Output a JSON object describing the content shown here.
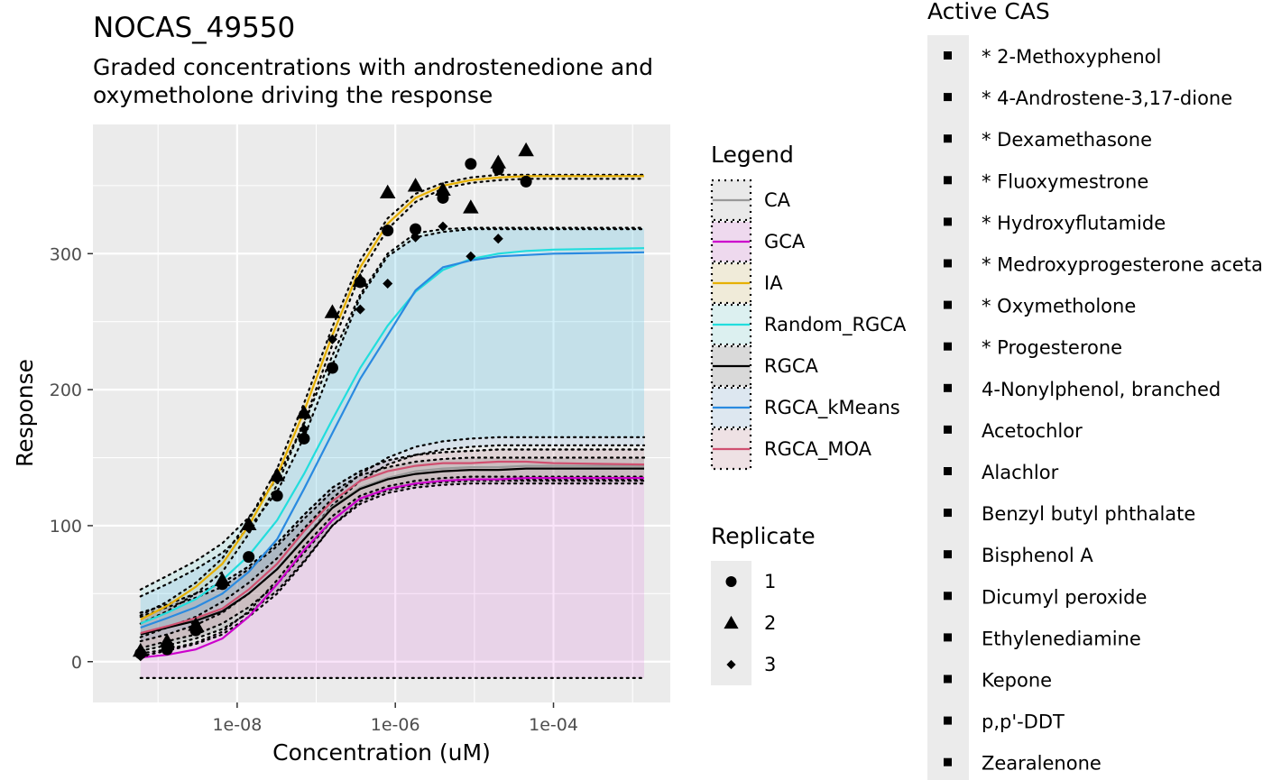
{
  "chart_data": {
    "type": "line",
    "title": "NOCAS_49550",
    "subtitle_lines": [
      "Graded concentrations with androstenedione and",
      "oxymetholone driving the response"
    ],
    "xlabel": "Concentration (uM)",
    "ylabel": "Response",
    "x_scale": "log10",
    "xlim": [
      1.5e-10,
      0.003
    ],
    "ylim": [
      -30,
      395
    ],
    "x_ticks": [
      {
        "value": 1e-08,
        "label": "1e-08"
      },
      {
        "value": 1e-06,
        "label": "1e-06"
      },
      {
        "value": 0.0001,
        "label": "1e-04"
      }
    ],
    "y_ticks": [
      {
        "value": 0,
        "label": "0"
      },
      {
        "value": 100,
        "label": "100"
      },
      {
        "value": 200,
        "label": "200"
      },
      {
        "value": 300,
        "label": "300"
      }
    ],
    "grid": true,
    "x": [
      6e-10,
      1.3e-09,
      3e-09,
      6.5e-09,
      1.4e-08,
      3.2e-08,
      7e-08,
      1.6e-07,
      3.6e-07,
      8e-07,
      1.8e-06,
      4e-06,
      9e-06,
      2e-05,
      4.5e-05,
      0.0001,
      0.0014
    ],
    "series": [
      {
        "name": "CA",
        "color": "#999999",
        "values": [
          20,
          25,
          31,
          37,
          50,
          68,
          90,
          114,
          128,
          135,
          140,
          142,
          143,
          143,
          144,
          144,
          144
        ],
        "lower": [
          4,
          8,
          13,
          20,
          33,
          50,
          73,
          100,
          118,
          126,
          130,
          132,
          133,
          133,
          133,
          133,
          133
        ],
        "upper": [
          36,
          42,
          50,
          58,
          70,
          87,
          108,
          128,
          140,
          148,
          152,
          154,
          155,
          156,
          156,
          156,
          156
        ]
      },
      {
        "name": "GCA",
        "color": "#cc00cc",
        "values": [
          3,
          5,
          9,
          17,
          33,
          57,
          82,
          104,
          120,
          127,
          131,
          133,
          134,
          134,
          135,
          135,
          135
        ],
        "lower": [
          -12,
          -12,
          -12,
          -12,
          -12,
          -12,
          -12,
          -12,
          -12,
          -12,
          -12,
          -12,
          -12,
          -12,
          -12,
          -12,
          -12
        ],
        "upper": [
          6,
          9,
          14,
          22,
          37,
          60,
          85,
          107,
          122,
          129,
          133,
          135,
          136,
          136,
          136,
          136,
          136
        ]
      },
      {
        "name": "IA",
        "color": "#e6b000",
        "values": [
          31,
          41,
          55,
          72,
          100,
          137,
          184,
          240,
          290,
          322,
          341,
          350,
          354,
          356,
          357,
          357,
          357
        ],
        "lower": [
          28,
          37,
          50,
          66,
          94,
          130,
          176,
          233,
          285,
          318,
          338,
          348,
          352,
          354,
          355,
          355,
          355
        ],
        "upper": [
          34,
          44,
          58,
          76,
          104,
          142,
          190,
          246,
          295,
          326,
          344,
          352,
          356,
          358,
          358,
          358,
          358
        ]
      },
      {
        "name": "Random_RGCA",
        "color": "#22dddd",
        "values": [
          28,
          36,
          46,
          60,
          78,
          104,
          138,
          178,
          216,
          247,
          272,
          288,
          296,
          300,
          302,
          303,
          304
        ],
        "lower": [
          18,
          25,
          33,
          44,
          58,
          76,
          98,
          120,
          138,
          150,
          158,
          162,
          164,
          165,
          165,
          165,
          165
        ],
        "upper": [
          53,
          63,
          74,
          87,
          106,
          135,
          175,
          225,
          270,
          300,
          315,
          318,
          319,
          319,
          319,
          319,
          319
        ]
      },
      {
        "name": "RGCA",
        "color": "#000000",
        "values": [
          20,
          25,
          30,
          37,
          50,
          68,
          90,
          113,
          127,
          134,
          138,
          140,
          141,
          141,
          142,
          142,
          142
        ],
        "lower": [
          8,
          12,
          17,
          24,
          36,
          52,
          74,
          100,
          116,
          124,
          128,
          130,
          131,
          131,
          131,
          131,
          131
        ],
        "upper": [
          33,
          40,
          47,
          55,
          68,
          85,
          105,
          125,
          137,
          143,
          147,
          149,
          150,
          150,
          150,
          150,
          150
        ]
      },
      {
        "name": "RGCA_kMeans",
        "color": "#2a8ae0",
        "values": [
          25,
          32,
          40,
          50,
          66,
          90,
          127,
          168,
          208,
          240,
          273,
          290,
          295,
          298,
          299,
          300,
          301
        ],
        "lower": [
          15,
          20,
          27,
          36,
          50,
          68,
          90,
          115,
          133,
          145,
          152,
          156,
          158,
          159,
          159,
          159,
          159
        ],
        "upper": [
          48,
          57,
          68,
          80,
          98,
          125,
          165,
          218,
          268,
          298,
          312,
          316,
          318,
          318,
          318,
          318,
          318
        ]
      },
      {
        "name": "RGCA_MOA",
        "color": "#d05070",
        "values": [
          21,
          26,
          32,
          39,
          53,
          72,
          96,
          118,
          133,
          140,
          144,
          146,
          146,
          147,
          147,
          146,
          145
        ],
        "lower": [
          10,
          15,
          20,
          28,
          40,
          57,
          80,
          104,
          120,
          127,
          131,
          133,
          134,
          134,
          134,
          134,
          134
        ],
        "upper": [
          36,
          42,
          50,
          58,
          70,
          87,
          108,
          128,
          140,
          148,
          152,
          154,
          155,
          156,
          156,
          156,
          156
        ]
      }
    ],
    "replicates": [
      {
        "name": "1",
        "shape": "circle",
        "points": [
          [
            6e-10,
            6
          ],
          [
            1.3e-09,
            9
          ],
          [
            3e-09,
            23
          ],
          [
            6.5e-09,
            57
          ],
          [
            1.4e-08,
            77
          ],
          [
            3.2e-08,
            122
          ],
          [
            7e-08,
            164
          ],
          [
            1.6e-07,
            216
          ],
          [
            3.6e-07,
            279
          ],
          [
            8e-07,
            317
          ],
          [
            1.8e-06,
            318
          ],
          [
            4e-06,
            341
          ],
          [
            9e-06,
            366
          ],
          [
            2e-05,
            362
          ],
          [
            4.5e-05,
            353
          ]
        ]
      },
      {
        "name": "2",
        "shape": "triangle",
        "points": [
          [
            6e-10,
            8
          ],
          [
            1.3e-09,
            15
          ],
          [
            3e-09,
            27
          ],
          [
            6.5e-09,
            60
          ],
          [
            1.4e-08,
            101
          ],
          [
            3.2e-08,
            137
          ],
          [
            7e-08,
            183
          ],
          [
            1.6e-07,
            257
          ],
          [
            3.6e-07,
            280
          ],
          [
            8e-07,
            345
          ],
          [
            1.8e-06,
            350
          ],
          [
            4e-06,
            347
          ],
          [
            9e-06,
            334
          ],
          [
            2e-05,
            367
          ],
          [
            4.5e-05,
            376
          ]
        ]
      },
      {
        "name": "3",
        "shape": "diamond",
        "points": [
          [
            6e-10,
            4
          ],
          [
            1.3e-09,
            12
          ],
          [
            3e-09,
            28
          ],
          [
            6.5e-09,
            58
          ],
          [
            1.4e-08,
            98
          ],
          [
            3.2e-08,
            134
          ],
          [
            7e-08,
            171
          ],
          [
            1.6e-07,
            237
          ],
          [
            3.6e-07,
            259
          ],
          [
            8e-07,
            278
          ],
          [
            1.8e-06,
            312
          ],
          [
            4e-06,
            320
          ],
          [
            9e-06,
            298
          ],
          [
            2e-05,
            311
          ]
        ]
      }
    ],
    "legend_title": "Legend",
    "replicate_legend_title": "Replicate",
    "active_cas_title": "Active CAS",
    "active_cas": [
      "* 2-Methoxyphenol",
      "* 4-Androstene-3,17-dione",
      "* Dexamethasone",
      "* Fluoxymestrone",
      "* Hydroxyflutamide",
      "* Medroxyprogesterone acetate",
      "* Oxymetholone",
      "* Progesterone",
      "4-Nonylphenol, branched",
      "Acetochlor",
      "Alachlor",
      "Benzyl butyl phthalate",
      "Bisphenol A",
      "Dicumyl peroxide",
      "Ethylenediamine",
      "Kepone",
      "p,p'-DDT",
      "Zearalenone"
    ]
  }
}
